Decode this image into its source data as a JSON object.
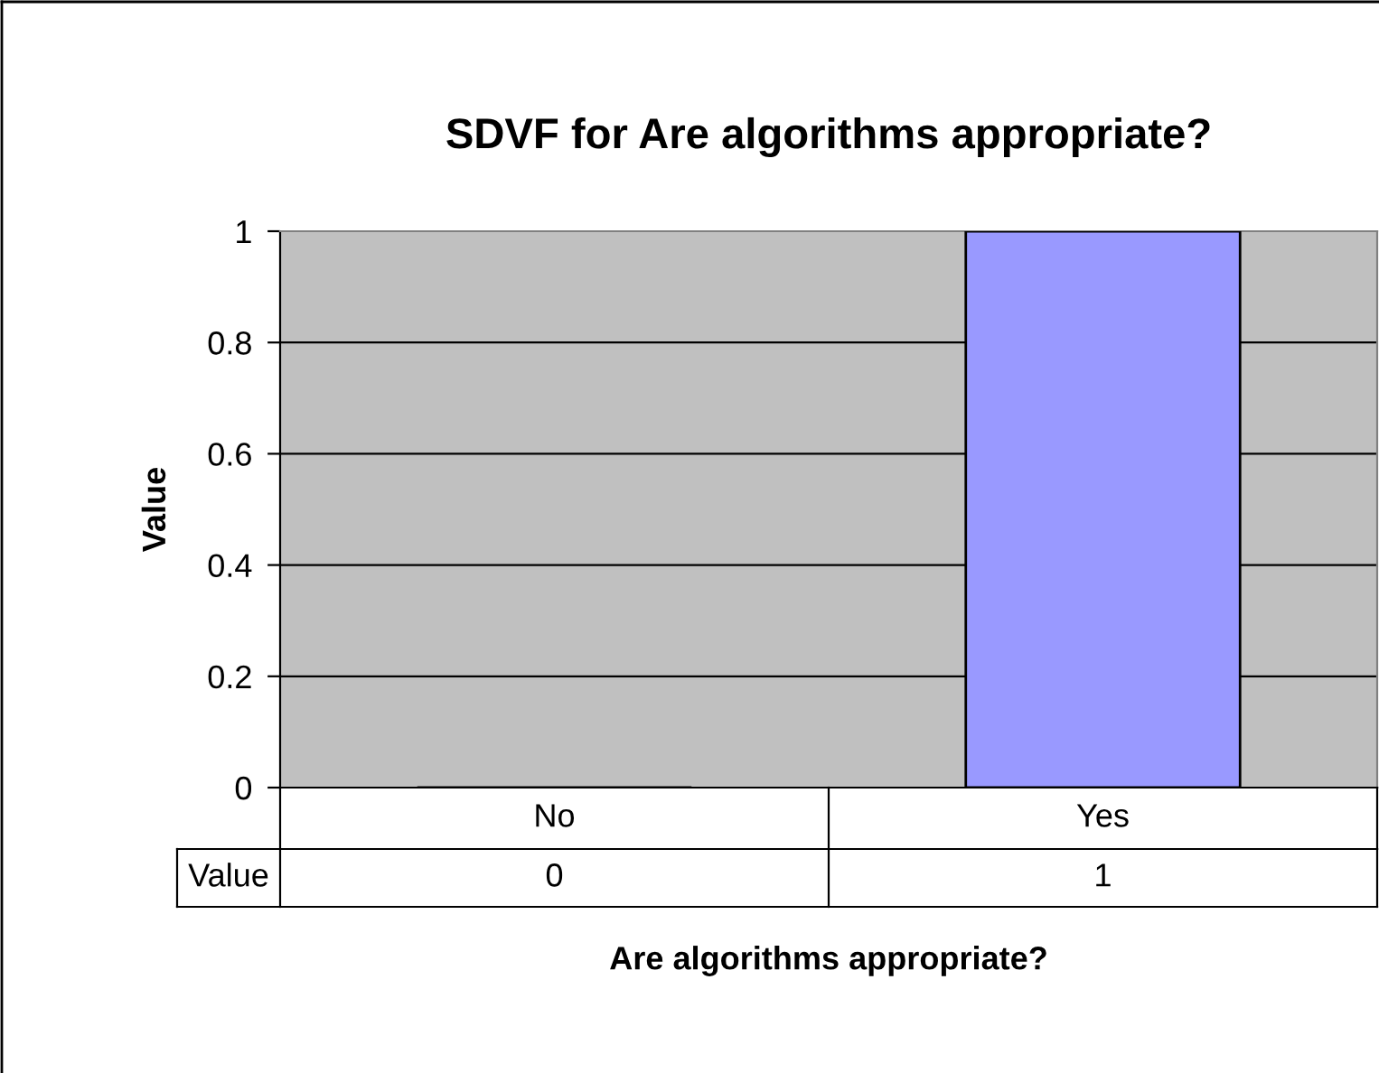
{
  "chart_data": {
    "type": "bar",
    "title": "SDVF for Are algorithms appropriate?",
    "xlabel": "Are algorithms appropriate?",
    "ylabel": "Value",
    "categories": [
      "No",
      "Yes"
    ],
    "series": [
      {
        "name": "Value",
        "color": "#9999ff",
        "values": [
          0,
          1
        ]
      }
    ],
    "ylim": [
      0,
      1
    ],
    "yticks": [
      0,
      0.2,
      0.4,
      0.6,
      0.8,
      1
    ],
    "grid": "y",
    "data_labels": true
  }
}
